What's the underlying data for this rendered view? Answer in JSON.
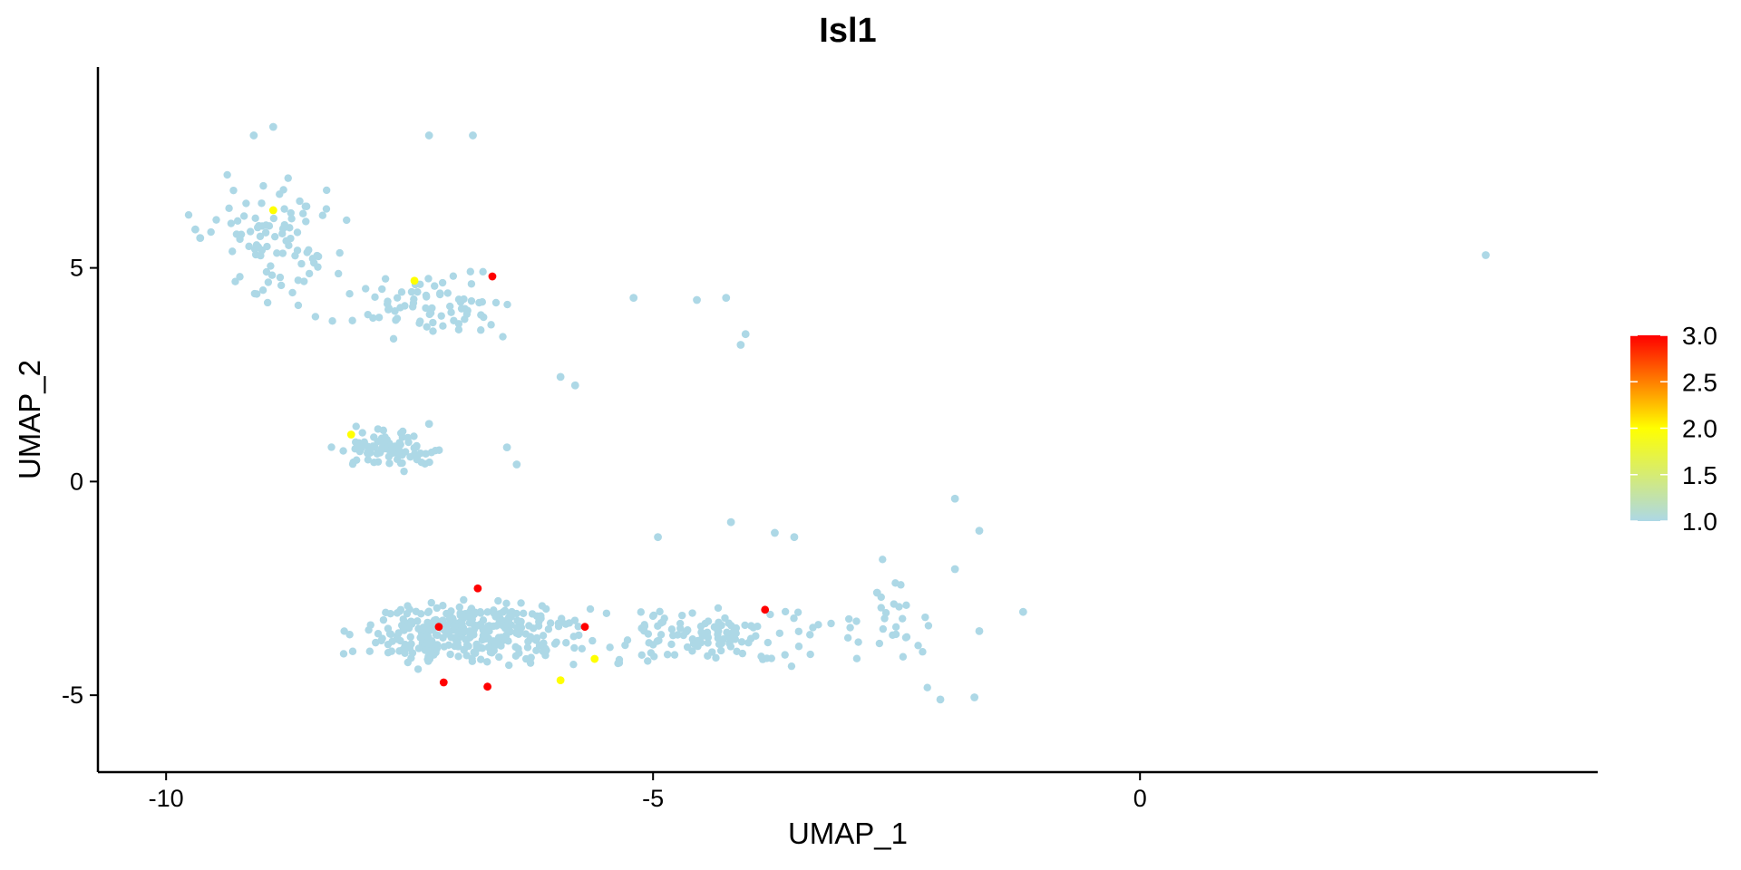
{
  "chart_data": {
    "type": "scatter",
    "title": "Isl1",
    "xlabel": "UMAP_1",
    "ylabel": "UMAP_2",
    "xlim": [
      -10.7,
      4.7
    ],
    "ylim": [
      -6.8,
      9.7
    ],
    "x_ticks": [
      -10,
      -5,
      0
    ],
    "x_tick_labels": [
      "-10",
      "-5",
      "0"
    ],
    "y_ticks": [
      -5,
      0,
      5
    ],
    "y_tick_labels": [
      "-5",
      "0",
      "5"
    ],
    "grid": false,
    "legend": {
      "placement": "right",
      "kind": "color-gradient",
      "min": 1.0,
      "max": 3.0,
      "ticks": [
        1.0,
        1.5,
        2.0,
        2.5,
        3.0
      ],
      "tick_labels": [
        "1.0",
        "1.5",
        "2.0",
        "2.5",
        "3.0"
      ],
      "gradient_colors": [
        "#add8e6",
        "#ffff00",
        "#ff0000"
      ]
    },
    "colors": {
      "low": "#add8e6",
      "mid": "#ffff00",
      "high": "#ff0000"
    },
    "clusters": [
      {
        "center": [
          -8.9,
          5.6
        ],
        "spread": [
          0.55,
          1.15
        ],
        "count": 90
      },
      {
        "center": [
          -7.2,
          4.1
        ],
        "spread": [
          0.7,
          0.55
        ],
        "count": 75
      },
      {
        "center": [
          -7.7,
          0.75
        ],
        "spread": [
          0.4,
          0.35
        ],
        "count": 85
      },
      {
        "center": [
          -6.9,
          -3.55
        ],
        "spread": [
          0.85,
          0.6
        ],
        "count": 340
      },
      {
        "center": [
          -4.4,
          -3.6
        ],
        "spread": [
          0.9,
          0.55
        ],
        "count": 120
      },
      {
        "center": [
          -2.7,
          -3.4
        ],
        "spread": [
          0.7,
          0.9
        ],
        "count": 30
      }
    ],
    "points": [
      {
        "x": 3.55,
        "y": 5.3,
        "value": 1.0
      },
      {
        "x": -9.1,
        "y": 8.1,
        "value": 1.0
      },
      {
        "x": -8.9,
        "y": 8.3,
        "value": 1.0
      },
      {
        "x": -7.3,
        "y": 8.1,
        "value": 1.0
      },
      {
        "x": -6.85,
        "y": 8.1,
        "value": 1.0
      },
      {
        "x": -9.7,
        "y": 5.9,
        "value": 1.0
      },
      {
        "x": -9.65,
        "y": 5.7,
        "value": 1.0
      },
      {
        "x": -5.2,
        "y": 4.3,
        "value": 1.0
      },
      {
        "x": -4.55,
        "y": 4.25,
        "value": 1.0
      },
      {
        "x": -4.25,
        "y": 4.3,
        "value": 1.0
      },
      {
        "x": -4.05,
        "y": 3.45,
        "value": 1.0
      },
      {
        "x": -4.1,
        "y": 3.2,
        "value": 1.0
      },
      {
        "x": -5.95,
        "y": 2.45,
        "value": 1.0
      },
      {
        "x": -5.8,
        "y": 2.25,
        "value": 1.0
      },
      {
        "x": -6.5,
        "y": 0.8,
        "value": 1.0
      },
      {
        "x": -6.4,
        "y": 0.4,
        "value": 1.0
      },
      {
        "x": -7.3,
        "y": 1.35,
        "value": 1.0
      },
      {
        "x": -1.9,
        "y": -0.4,
        "value": 1.0
      },
      {
        "x": -1.65,
        "y": -1.15,
        "value": 1.0
      },
      {
        "x": -1.9,
        "y": -2.05,
        "value": 1.0
      },
      {
        "x": -1.2,
        "y": -3.05,
        "value": 1.0
      },
      {
        "x": -1.65,
        "y": -3.5,
        "value": 1.0
      },
      {
        "x": -1.7,
        "y": -5.05,
        "value": 1.0
      },
      {
        "x": -2.05,
        "y": -5.1,
        "value": 1.0
      },
      {
        "x": -4.2,
        "y": -0.95,
        "value": 1.0
      },
      {
        "x": -3.55,
        "y": -1.3,
        "value": 1.0
      },
      {
        "x": -3.75,
        "y": -1.2,
        "value": 1.0
      },
      {
        "x": -4.95,
        "y": -1.3,
        "value": 1.0
      },
      {
        "x": -2.7,
        "y": -2.6,
        "value": 1.0
      },
      {
        "x": -8.9,
        "y": 6.35,
        "value": 2.0
      },
      {
        "x": -7.45,
        "y": 4.7,
        "value": 2.0
      },
      {
        "x": -8.1,
        "y": 1.1,
        "value": 2.0
      },
      {
        "x": -5.6,
        "y": -4.15,
        "value": 2.0
      },
      {
        "x": -5.95,
        "y": -4.65,
        "value": 2.0
      },
      {
        "x": -6.65,
        "y": 4.8,
        "value": 3.0
      },
      {
        "x": -6.8,
        "y": -2.5,
        "value": 3.0
      },
      {
        "x": -7.2,
        "y": -3.4,
        "value": 3.0
      },
      {
        "x": -5.7,
        "y": -3.4,
        "value": 3.0
      },
      {
        "x": -3.85,
        "y": -3.0,
        "value": 3.0
      },
      {
        "x": -7.15,
        "y": -4.7,
        "value": 3.0
      },
      {
        "x": -6.7,
        "y": -4.8,
        "value": 3.0
      }
    ]
  }
}
